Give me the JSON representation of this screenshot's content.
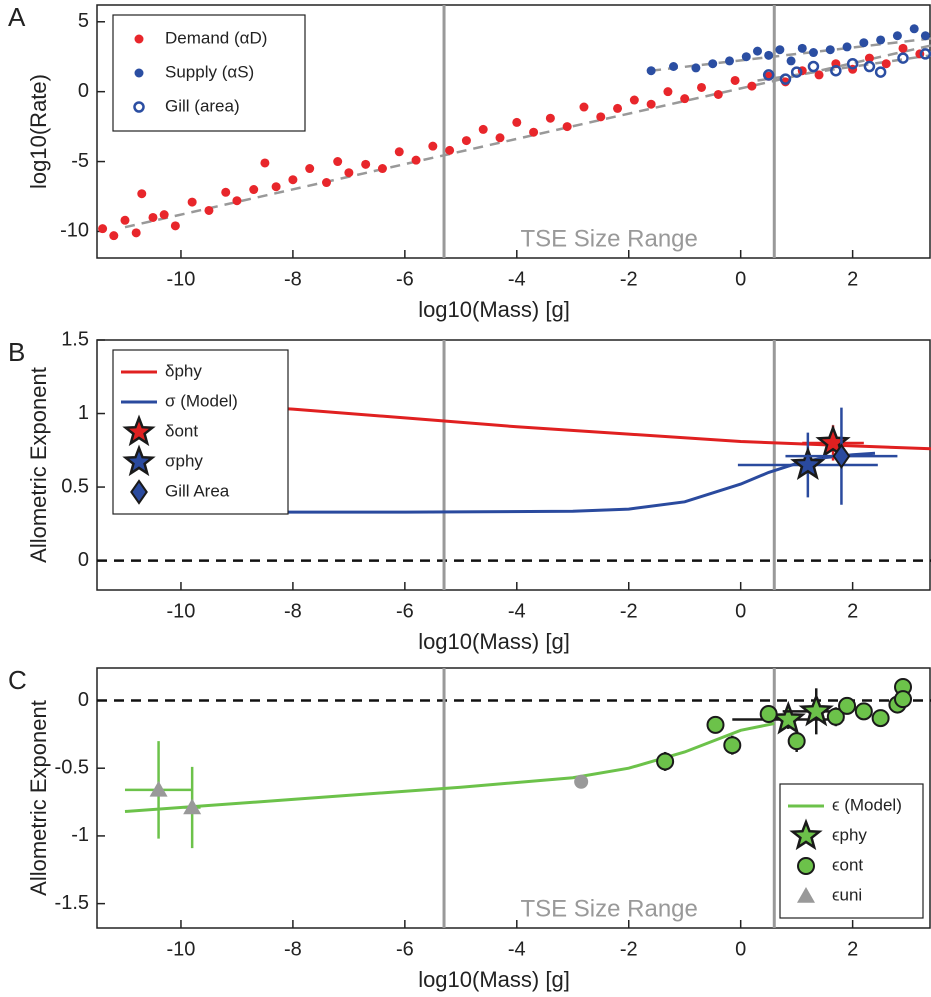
{
  "chart_data": [
    {
      "type": "scatter",
      "panel_label": "A",
      "xlabel": "log10(Mass) [g]",
      "ylabel": "log10(Rate)",
      "xlim": [
        -11.5,
        3.4
      ],
      "ylim": [
        -11.9,
        6.2
      ],
      "xticks": [
        -10,
        -8,
        -6,
        -4,
        -2,
        0,
        2
      ],
      "yticks": [
        -10,
        -5,
        0,
        5
      ],
      "vlines": [
        -5.3,
        0.6
      ],
      "annotation": "TSE Size Range",
      "legend": "upper left",
      "series": [
        {
          "name": "Demand (αD)",
          "kind": "scatter",
          "marker": "circle",
          "color": "#e8262b",
          "x": [
            -11.4,
            -11.2,
            -11,
            -10.8,
            -10.7,
            -10.5,
            -10.3,
            -10.1,
            -9.8,
            -9.5,
            -9.2,
            -9,
            -8.7,
            -8.5,
            -8.3,
            -8,
            -7.7,
            -7.4,
            -7.2,
            -7,
            -6.7,
            -6.4,
            -6.1,
            -5.8,
            -5.5,
            -5.2,
            -4.9,
            -4.6,
            -4.3,
            -4,
            -3.7,
            -3.4,
            -3.1,
            -2.8,
            -2.5,
            -2.2,
            -1.9,
            -1.6,
            -1.3,
            -1,
            -0.7,
            -0.4,
            -0.1,
            0.2,
            0.5,
            0.8,
            1.1,
            1.4,
            1.7,
            2,
            2.3,
            2.6,
            2.9,
            3.2
          ],
          "y": [
            -9.8,
            -10.3,
            -9.2,
            -10.1,
            -7.3,
            -9,
            -8.8,
            -9.6,
            -7.9,
            -8.5,
            -7.2,
            -7.8,
            -7,
            -5.1,
            -6.8,
            -6.3,
            -5.5,
            -6.5,
            -5,
            -5.8,
            -5.2,
            -5.5,
            -4.3,
            -4.9,
            -3.9,
            -4.2,
            -3.5,
            -2.7,
            -3.3,
            -2.2,
            -2.9,
            -1.9,
            -2.5,
            -1.1,
            -1.8,
            -1.2,
            -0.6,
            -0.9,
            0,
            -0.5,
            0.3,
            -0.2,
            0.8,
            0.4,
            1.1,
            0.7,
            1.5,
            1.2,
            2,
            1.6,
            2.4,
            2,
            3.1,
            2.7
          ]
        },
        {
          "name": "Supply (αS)",
          "kind": "scatter",
          "marker": "circle",
          "color": "#2b4ea2",
          "x": [
            -1.6,
            -1.2,
            -0.8,
            -0.5,
            -0.2,
            0.1,
            0.3,
            0.5,
            0.7,
            0.9,
            1.1,
            1.3,
            1.6,
            1.9,
            2.2,
            2.5,
            2.8,
            3.1,
            3.3
          ],
          "y": [
            1.5,
            1.8,
            1.7,
            2,
            2.2,
            2.5,
            2.9,
            2.6,
            3,
            2.2,
            3.1,
            2.8,
            3,
            3.2,
            3.5,
            3.7,
            4,
            4.5,
            4
          ]
        },
        {
          "name": "Gill (area)",
          "kind": "scatter",
          "marker": "open",
          "color": "#2b4ea2",
          "x": [
            0.5,
            0.8,
            1,
            1.3,
            1.7,
            2,
            2.3,
            2.5,
            2.9,
            3.3
          ],
          "y": [
            1.2,
            0.9,
            1.4,
            1.8,
            1.5,
            2,
            1.8,
            1.4,
            2.4,
            2.7
          ]
        },
        {
          "kind": "line",
          "dashed": true,
          "color": "#999999",
          "x": [
            -11,
            3.4
          ],
          "y": [
            -9.7,
            3.3
          ]
        },
        {
          "kind": "line",
          "dashed": true,
          "color": "#999999",
          "x": [
            -1.6,
            3.4
          ],
          "y": [
            1.5,
            3.8
          ]
        },
        {
          "kind": "line",
          "dashed": true,
          "color": "#999999",
          "x": [
            0.3,
            3.4
          ],
          "y": [
            0.8,
            2.6
          ]
        }
      ]
    },
    {
      "type": "line",
      "panel_label": "B",
      "xlabel": "log10(Mass) [g]",
      "ylabel": "Allometric Exponent",
      "xlim": [
        -11.5,
        3.4
      ],
      "ylim": [
        -0.2,
        1.5
      ],
      "xticks": [
        -10,
        -8,
        -6,
        -4,
        -2,
        0,
        2
      ],
      "yticks": [
        0,
        0.5,
        1,
        1.5
      ],
      "vlines": [
        -5.3,
        0.6
      ],
      "hline": 0,
      "legend": "upper left",
      "series": [
        {
          "name": "δphy",
          "kind": "line",
          "color": "#e02020",
          "x": [
            -10.8,
            -8,
            -6,
            -4,
            -2,
            0,
            2,
            3.4
          ],
          "y": [
            1.09,
            1.03,
            0.97,
            0.91,
            0.86,
            0.81,
            0.78,
            0.76
          ]
        },
        {
          "name": "σ (Model)",
          "kind": "line",
          "color": "#2a4a9e",
          "x": [
            -10.8,
            -6,
            -3,
            -2,
            -1,
            0,
            0.5,
            1,
            1.5,
            2,
            2.4
          ],
          "y": [
            0.33,
            0.33,
            0.335,
            0.35,
            0.4,
            0.52,
            0.6,
            0.66,
            0.7,
            0.72,
            0.73
          ]
        },
        {
          "name": "δont",
          "kind": "errorbar",
          "marker": "star",
          "color": "#e02020",
          "x": [
            1.65
          ],
          "y": [
            0.8
          ],
          "xerr": [
            0.55
          ],
          "yerr": [
            0.12
          ]
        },
        {
          "name": "σphy",
          "kind": "errorbar",
          "marker": "star",
          "color": "#2a4a9e",
          "x": [
            1.2
          ],
          "y": [
            0.65
          ],
          "xerr": [
            1.25
          ],
          "yerr": [
            0.22
          ]
        },
        {
          "name": "Gill Area",
          "kind": "errorbar",
          "marker": "diamond",
          "color": "#2a4a9e",
          "x": [
            1.8
          ],
          "y": [
            0.71
          ],
          "xerr": [
            1.0
          ],
          "yerr": [
            0.33
          ]
        }
      ]
    },
    {
      "type": "line",
      "panel_label": "C",
      "xlabel": "log10(Mass) [g]",
      "ylabel": "Allometric Exponent",
      "xlim": [
        -11.5,
        3.4
      ],
      "ylim": [
        -1.68,
        0.24
      ],
      "xticks": [
        -10,
        -8,
        -6,
        -4,
        -2,
        0,
        2
      ],
      "yticks": [
        -1.5,
        -1,
        -0.5,
        0
      ],
      "vlines": [
        -5.3,
        0.6
      ],
      "hline": 0,
      "annotation": "TSE Size Range",
      "legend": "lower right",
      "series": [
        {
          "name": "ϵ (Model)",
          "kind": "line",
          "color": "#6cc24a",
          "x": [
            -11,
            -8,
            -5,
            -3,
            -2,
            -1,
            0,
            0.6
          ],
          "y": [
            -0.82,
            -0.73,
            -0.64,
            -0.57,
            -0.5,
            -0.38,
            -0.22,
            -0.17
          ]
        },
        {
          "name": "ϵphy",
          "kind": "errorbar",
          "marker": "star",
          "color": "#6cc24a",
          "x": [
            0.85,
            1.35
          ],
          "y": [
            -0.14,
            -0.08
          ],
          "xerr": [
            1.0,
            0.6
          ],
          "yerr": [
            0.07,
            0.17
          ]
        },
        {
          "name": "ϵont",
          "kind": "errorbar",
          "marker": "circle",
          "color": "#6cc24a",
          "x": [
            -1.35,
            -0.45,
            -0.15,
            0.5,
            1.0,
            1.7,
            1.9,
            2.2,
            2.5,
            2.8,
            2.9,
            2.9
          ],
          "y": [
            -0.45,
            -0.18,
            -0.33,
            -0.1,
            -0.3,
            -0.12,
            -0.04,
            -0.08,
            -0.13,
            -0.03,
            0.1,
            0.01
          ],
          "xerr": [
            0,
            0,
            0,
            0,
            0,
            0,
            0,
            0,
            0,
            0,
            0,
            0
          ],
          "yerr": [
            0.07,
            0.05,
            0.07,
            0,
            0.08,
            0.07,
            0.05,
            0.05,
            0,
            0,
            0,
            0
          ]
        },
        {
          "kind": "scatter",
          "marker": "circle",
          "color": "#999999",
          "x": [
            -2.85
          ],
          "y": [
            -0.6
          ]
        },
        {
          "name": "ϵuni",
          "kind": "errorbar",
          "marker": "triangle",
          "color": "#999999",
          "x": [
            -10.4,
            -9.8
          ],
          "y": [
            -0.66,
            -0.79
          ],
          "xerr": [
            0.6,
            0.15
          ],
          "yerr": [
            0.36,
            0.3
          ]
        }
      ]
    }
  ]
}
